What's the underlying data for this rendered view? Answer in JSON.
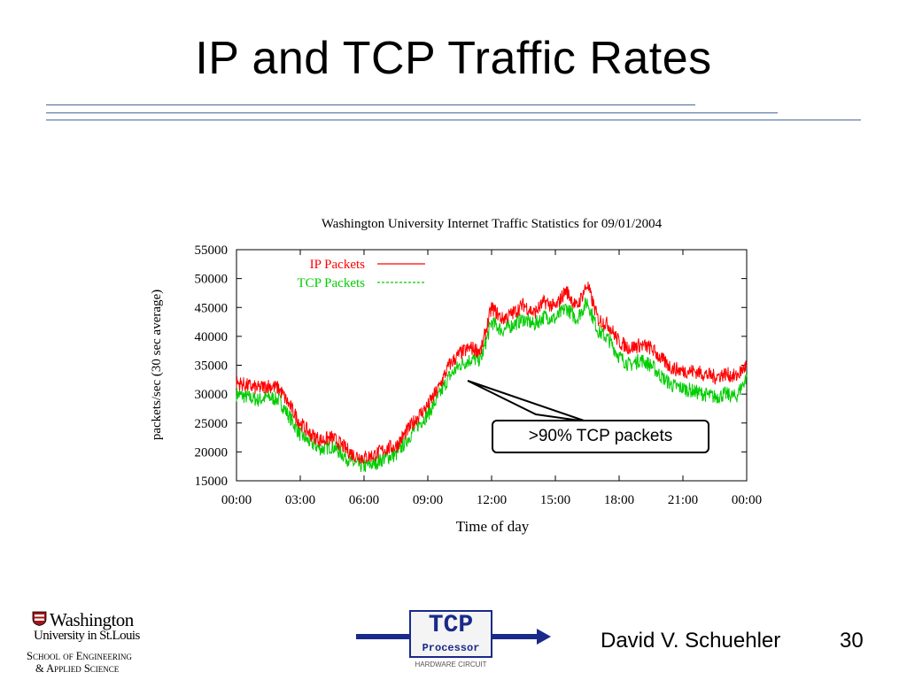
{
  "slide": {
    "title": "IP and TCP Traffic Rates",
    "author": "David V. Schuehler",
    "page_number": "30",
    "callout": ">90% TCP packets"
  },
  "logos": {
    "wu_name": "Washington",
    "wu_city": "University in St.Louis",
    "wu_school": "School of Engineering",
    "wu_applied": "& Applied Science",
    "tcp_big": "TCP",
    "tcp_small": "Processor",
    "tcp_caption": "HARDWARE CIRCUIT"
  },
  "colors": {
    "ip_series": "#ff0000",
    "tcp_series": "#00cc00",
    "rule": "#4a6a96",
    "logo_blue": "#1a2a8a"
  },
  "chart_data": {
    "type": "line",
    "title": "Washington University Internet Traffic Statistics for 09/01/2004",
    "xlabel": "Time of day",
    "ylabel": "packets/sec (30 sec average)",
    "xlim": [
      0,
      24
    ],
    "ylim": [
      15000,
      55000
    ],
    "x_ticks": [
      "00:00",
      "03:00",
      "06:00",
      "09:00",
      "12:00",
      "15:00",
      "18:00",
      "21:00",
      "00:00"
    ],
    "y_ticks": [
      "15000",
      "20000",
      "25000",
      "30000",
      "35000",
      "40000",
      "45000",
      "50000",
      "55000"
    ],
    "legend_position": "top-left",
    "grid": false,
    "series": [
      {
        "name": "IP Packets",
        "line_style": "solid",
        "x": [
          0,
          0.5,
          1,
          1.5,
          2,
          2.5,
          3,
          3.5,
          4,
          4.5,
          5,
          5.5,
          6,
          6.5,
          7,
          7.5,
          8,
          8.5,
          9,
          9.5,
          10,
          10.5,
          11,
          11.5,
          12,
          12.5,
          13,
          13.5,
          14,
          14.5,
          15,
          15.5,
          16,
          16.5,
          17,
          17.5,
          18,
          18.5,
          19,
          19.5,
          20,
          20.5,
          21,
          21.5,
          22,
          22.5,
          23,
          23.5,
          24
        ],
        "y": [
          32000,
          31500,
          31000,
          31500,
          31000,
          28000,
          25000,
          23000,
          22000,
          22500,
          21000,
          19500,
          19000,
          19500,
          20500,
          21000,
          23500,
          26000,
          28000,
          31000,
          35000,
          37000,
          38000,
          37500,
          45000,
          43000,
          44000,
          45500,
          44000,
          46000,
          45000,
          48000,
          45000,
          49000,
          43000,
          42000,
          39000,
          38000,
          38500,
          38000,
          36000,
          34500,
          34000,
          34000,
          33500,
          33000,
          33500,
          33000,
          35000
        ]
      },
      {
        "name": "TCP Packets",
        "line_style": "dashed",
        "x": [
          0,
          0.5,
          1,
          1.5,
          2,
          2.5,
          3,
          3.5,
          4,
          4.5,
          5,
          5.5,
          6,
          6.5,
          7,
          7.5,
          8,
          8.5,
          9,
          9.5,
          10,
          10.5,
          11,
          11.5,
          12,
          12.5,
          13,
          13.5,
          14,
          14.5,
          15,
          15.5,
          16,
          16.5,
          17,
          17.5,
          18,
          18.5,
          19,
          19.5,
          20,
          20.5,
          21,
          21.5,
          22,
          22.5,
          23,
          23.5,
          24
        ],
        "y": [
          30000,
          29500,
          29000,
          29500,
          29000,
          26000,
          23000,
          21500,
          20500,
          21000,
          19500,
          18000,
          17500,
          18000,
          19000,
          19500,
          22000,
          24500,
          26500,
          29500,
          33000,
          35000,
          36000,
          36000,
          42500,
          41000,
          42000,
          43000,
          42000,
          43500,
          43000,
          45000,
          43000,
          46000,
          41000,
          39500,
          36500,
          35000,
          36000,
          35000,
          33000,
          31500,
          31000,
          30500,
          30000,
          29500,
          30000,
          29500,
          33000
        ]
      }
    ]
  }
}
